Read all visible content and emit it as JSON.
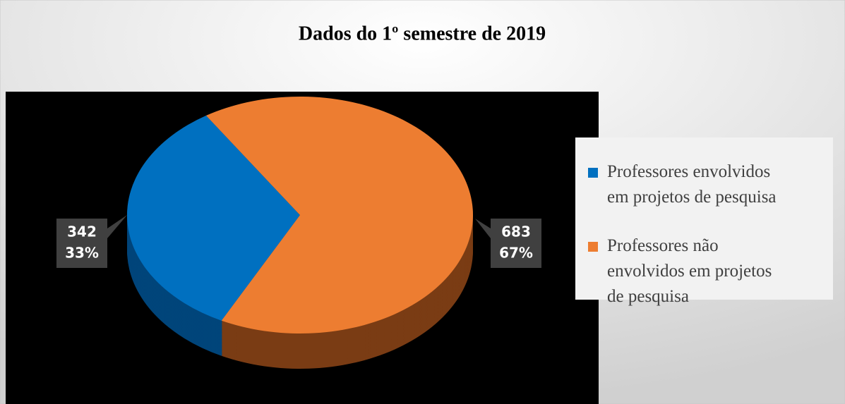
{
  "chart_data": {
    "type": "pie",
    "title": "Dados do 1º semestre de 2019",
    "categories": [
      "Professores envolvidos em projetos de pesquisa",
      "Professores não envolvidos em projetos de pesquisa"
    ],
    "values": [
      342,
      683
    ],
    "percent_labels": [
      "33%",
      "67%"
    ],
    "colors": [
      "#0070c0",
      "#ed7d31"
    ],
    "legend": "right"
  }
}
